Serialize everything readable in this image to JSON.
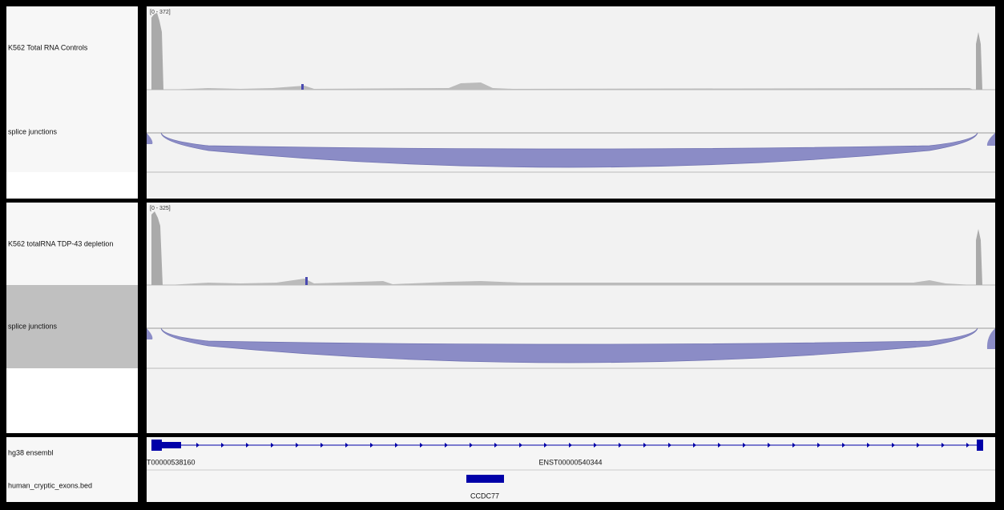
{
  "tracks": [
    {
      "name": "K562 Total RNA Controls",
      "range": "[0 - 372]"
    },
    {
      "name": "splice junctions"
    },
    {
      "name": "K562 totalRNA TDP-43 depletion",
      "range": "[0 - 325]"
    },
    {
      "name": "splice junctions"
    },
    {
      "name": "hg38 ensembl",
      "features": [
        "T00000538160",
        "ENST00000540344"
      ]
    },
    {
      "name": "human_cryptic_exons.bed",
      "features": [
        "CCDC77"
      ]
    }
  ]
}
